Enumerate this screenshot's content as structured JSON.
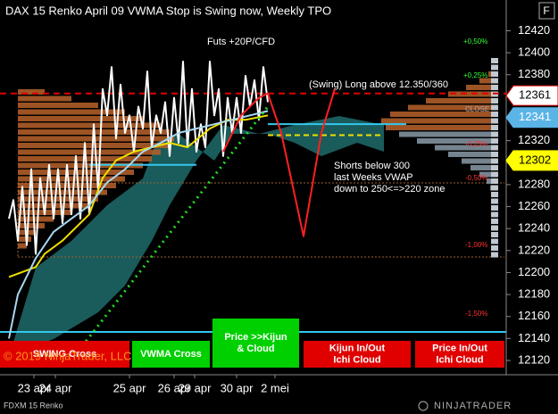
{
  "chart_data": {
    "type": "line",
    "title": "DAX 15 Renko April 09 VWMA  Stop is Swing now, Weekly TPO",
    "subtitle": "Futs +20P/CFD",
    "long_note": "(Swing) Long above 12.350/360",
    "short_note": [
      "Shorts below 300",
      "last Weeks VWAP",
      "down to 250<=>220 zone"
    ],
    "percent_labels": [
      "+0,50%",
      "+0,25%",
      "CLOSE",
      "-0,25%",
      "-0,50%",
      "-1,00%",
      "-1,50%"
    ],
    "signals": [
      {
        "label": "SWING Cross",
        "color": "#e00000"
      },
      {
        "label": "VWMA Cross",
        "color": "#00d000"
      },
      {
        "label": "Price >>Kijun & Cloud",
        "color": "#00d000"
      },
      {
        "label": "Kijun In/Out Ichi Cloud",
        "color": "#e00000"
      },
      {
        "label": "Price In/Out Ichi Cloud",
        "color": "#e00000"
      }
    ],
    "copyright": "© 2019 NinjaTrader, LLC",
    "instrument": "FDXM 15 Renko",
    "brand": "NINJATRADER",
    "button": "F",
    "ylim": [
      12107,
      12448
    ],
    "yticks": [
      12120,
      12140,
      12160,
      12180,
      12200,
      12220,
      12240,
      12260,
      12280,
      12300,
      12320,
      12340,
      12360,
      12380,
      12400,
      12420
    ],
    "xlim": [
      0,
      113.4
    ],
    "xticks": [
      {
        "value": 7.6,
        "label": "23 apr"
      },
      {
        "value": 12.4,
        "label": "24 apr"
      },
      {
        "value": 29,
        "label": "25 apr"
      },
      {
        "value": 39,
        "label": "26 apr"
      },
      {
        "value": 43.6,
        "label": "29 apr"
      },
      {
        "value": 53,
        "label": "30 apr"
      },
      {
        "value": 61.6,
        "label": "2 mei"
      }
    ],
    "series": [
      {
        "color": "#ffffff",
        "width": 2,
        "x": [
          2,
          3,
          4,
          5,
          6,
          7,
          8,
          9,
          10,
          11,
          12,
          13,
          14,
          15,
          16,
          17,
          18,
          19,
          20,
          21,
          22,
          23,
          24,
          25,
          26,
          27,
          28,
          29,
          30,
          31,
          32,
          33,
          34,
          35,
          36,
          37,
          38,
          39,
          40,
          41,
          42,
          43,
          44,
          45,
          46,
          47,
          48,
          49,
          50,
          51,
          52,
          53,
          54,
          55,
          56,
          57,
          58,
          59,
          60
        ],
        "values": [
          12249,
          12266,
          12229,
          12278,
          12225,
          12294,
          12217,
          12286,
          12253,
          12298,
          12249,
          12294,
          12245,
          12298,
          12253,
          12306,
          12249,
          12318,
          12253,
          12335,
          12274,
          12367,
          12343,
          12387,
          12322,
          12371,
          12327,
          12343,
          12310,
          12351,
          12331,
          12383,
          12314,
          12343,
          12327,
          12355,
          12306,
          12359,
          12318,
          12392,
          12314,
          12367,
          12310,
          12335,
          12314,
          12392,
          12343,
          12367,
          12306,
          12359,
          12327,
          12359,
          12327,
          12379,
          12351,
          12375,
          12339,
          12387,
          12355
        ]
      },
      {
        "color": "#f0e000",
        "width": 2,
        "x": [
          2,
          8,
          10,
          14,
          20,
          23,
          26,
          30,
          34,
          38,
          42,
          47,
          51,
          55,
          60
        ],
        "values": [
          12196,
          12205,
          12217,
          12229,
          12253,
          12286,
          12302,
          12310,
          12314,
          12318,
          12314,
          12331,
          12339,
          12339,
          12343
        ]
      },
      {
        "color": "#a8d8f0",
        "width": 2,
        "x": [
          2,
          4,
          8,
          12,
          16,
          20,
          24,
          28,
          32,
          36,
          40,
          44,
          48,
          52,
          56,
          60
        ],
        "values": [
          12140,
          12180,
          12213,
          12237,
          12249,
          12261,
          12282,
          12294,
          12310,
          12318,
          12327,
          12331,
          12335,
          12339,
          12343,
          12347
        ]
      },
      {
        "color": "#ff2020",
        "width": 2,
        "x": [
          50,
          54,
          58,
          60,
          63,
          68,
          72,
          75
        ],
        "values": [
          12310,
          12343,
          12359,
          12363,
          12327,
          12233,
          12327,
          12367
        ]
      },
      {
        "color": "#22dd22",
        "width": 3,
        "dash": "2 5",
        "x": [
          15,
          60
        ],
        "values": [
          12115,
          12351
        ]
      }
    ],
    "levels": [
      {
        "value": 12363,
        "color": "#e00000",
        "dash": "7 5",
        "x": [
          0,
          113.4
        ]
      },
      {
        "value": 12298,
        "color": "#33c8ee",
        "x": [
          20,
          44
        ]
      },
      {
        "value": 12335,
        "color": "#33c8ee",
        "x": [
          60,
          91
        ]
      },
      {
        "value": 12146,
        "color": "#33c8ee",
        "x": [
          0,
          113.4
        ]
      },
      {
        "value": 12325,
        "color": "#f0e000",
        "dash": "6 4",
        "x": [
          60,
          86
        ]
      }
    ],
    "price_markers": [
      {
        "value": 12361,
        "color": "#ffffff",
        "text_color": "#000000"
      },
      {
        "value": 12341,
        "color": "#5ab4e6",
        "text_color": "#ffffff"
      },
      {
        "value": 12302,
        "color": "#ffff00",
        "text_color": "#000000"
      }
    ]
  }
}
